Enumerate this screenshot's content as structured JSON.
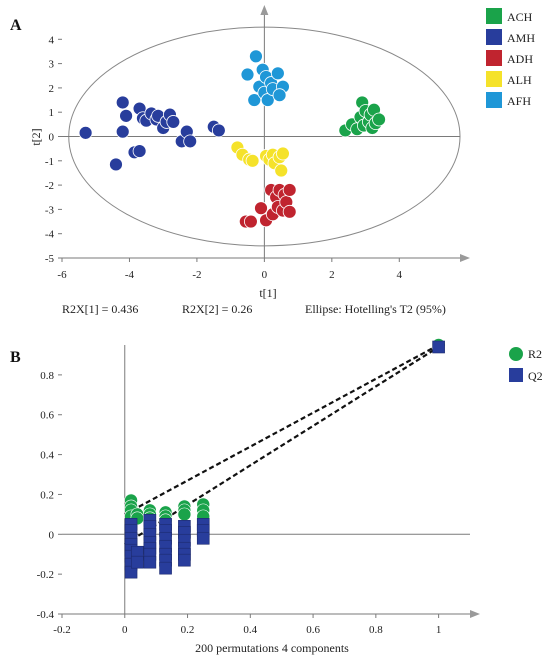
{
  "panels": {
    "a": "A",
    "b": "B"
  },
  "chart_data": [
    {
      "type": "scatter",
      "xlabel": "t[1]",
      "ylabel": "t[2]",
      "xlim": [
        -6,
        5.8
      ],
      "ylim": [
        -5,
        5
      ],
      "xticks": [
        -6,
        -4,
        -2,
        0,
        2,
        4
      ],
      "yticks": [
        -5,
        -4,
        -3,
        -2,
        -1,
        0,
        1,
        2,
        3,
        4
      ],
      "ellipse": {
        "center": [
          0,
          0
        ],
        "rx": 5.8,
        "ry": 4.5
      },
      "legend_position": "right",
      "footer": [
        "R2X[1] = 0.436",
        "R2X[2] = 0.26",
        "Ellipse: Hotelling's T2 (95%)"
      ],
      "series": [
        {
          "name": "ACH",
          "color": "#1aa34a",
          "points": [
            [
              2.4,
              0.25
            ],
            [
              2.6,
              0.5
            ],
            [
              2.75,
              0.3
            ],
            [
              2.85,
              0.8
            ],
            [
              2.9,
              1.4
            ],
            [
              2.95,
              0.45
            ],
            [
              3.0,
              1.05
            ],
            [
              3.1,
              0.6
            ],
            [
              3.15,
              0.9
            ],
            [
              3.2,
              0.35
            ],
            [
              3.25,
              1.1
            ],
            [
              3.3,
              0.55
            ],
            [
              3.4,
              0.7
            ]
          ]
        },
        {
          "name": "AMH",
          "color": "#283d9c",
          "points": [
            [
              -5.3,
              0.15
            ],
            [
              -4.4,
              -1.15
            ],
            [
              -4.2,
              1.4
            ],
            [
              -4.2,
              0.2
            ],
            [
              -4.1,
              0.85
            ],
            [
              -3.85,
              -0.65
            ],
            [
              -3.7,
              -0.6
            ],
            [
              -3.7,
              1.15
            ],
            [
              -3.6,
              0.75
            ],
            [
              -3.5,
              0.65
            ],
            [
              -3.35,
              0.95
            ],
            [
              -3.2,
              0.7
            ],
            [
              -3.15,
              0.85
            ],
            [
              -3.0,
              0.35
            ],
            [
              -2.9,
              0.6
            ],
            [
              -2.8,
              0.9
            ],
            [
              -2.7,
              0.6
            ],
            [
              -2.45,
              -0.2
            ],
            [
              -2.3,
              0.2
            ],
            [
              -2.2,
              -0.2
            ],
            [
              -1.5,
              0.4
            ],
            [
              -1.35,
              0.25
            ]
          ]
        },
        {
          "name": "ADH",
          "color": "#c0242f",
          "points": [
            [
              -0.55,
              -3.5
            ],
            [
              -0.4,
              -3.5
            ],
            [
              -0.1,
              -2.95
            ],
            [
              0.05,
              -3.45
            ],
            [
              0.2,
              -2.2
            ],
            [
              0.25,
              -3.2
            ],
            [
              0.35,
              -2.5
            ],
            [
              0.4,
              -2.9
            ],
            [
              0.45,
              -2.2
            ],
            [
              0.55,
              -3.05
            ],
            [
              0.6,
              -2.4
            ],
            [
              0.65,
              -2.7
            ],
            [
              0.75,
              -2.2
            ],
            [
              0.75,
              -3.1
            ]
          ]
        },
        {
          "name": "ALH",
          "color": "#f5e22a",
          "points": [
            [
              -0.8,
              -0.45
            ],
            [
              -0.65,
              -0.75
            ],
            [
              -0.45,
              -0.95
            ],
            [
              -0.35,
              -1.0
            ],
            [
              0.05,
              -0.8
            ],
            [
              0.15,
              -0.95
            ],
            [
              0.25,
              -0.75
            ],
            [
              0.3,
              -1.1
            ],
            [
              0.45,
              -0.85
            ],
            [
              0.5,
              -1.4
            ],
            [
              0.55,
              -0.7
            ]
          ]
        },
        {
          "name": "AFH",
          "color": "#1f97d7",
          "points": [
            [
              -0.5,
              2.55
            ],
            [
              -0.25,
              3.3
            ],
            [
              -0.3,
              1.5
            ],
            [
              -0.15,
              2.05
            ],
            [
              -0.05,
              2.75
            ],
            [
              0.0,
              1.8
            ],
            [
              0.05,
              2.45
            ],
            [
              0.1,
              1.5
            ],
            [
              0.2,
              2.2
            ],
            [
              0.25,
              1.95
            ],
            [
              0.4,
              2.6
            ],
            [
              0.55,
              2.05
            ],
            [
              0.45,
              1.7
            ]
          ]
        }
      ]
    },
    {
      "type": "scatter",
      "xlabel": "200 permutations 4 components",
      "ylabel": "",
      "xlim": [
        -0.2,
        1.1
      ],
      "ylim": [
        -0.4,
        0.95
      ],
      "xticks": [
        -0.2,
        0,
        0.2,
        0.4,
        0.6,
        0.8,
        1
      ],
      "yticks": [
        -0.4,
        -0.2,
        0,
        0.2,
        0.4,
        0.6,
        0.8
      ],
      "legend_position": "top-right",
      "series": [
        {
          "name": "R2",
          "color": "#1aa34a",
          "marker": "circle",
          "x": [
            0.02,
            0.02,
            0.02,
            0.02,
            0.04,
            0.04,
            0.08,
            0.08,
            0.08,
            0.13,
            0.13,
            0.13,
            0.19,
            0.19,
            0.19,
            0.25,
            0.25,
            0.25,
            1.0
          ],
          "y": [
            0.17,
            0.14,
            0.12,
            0.09,
            0.1,
            0.08,
            0.12,
            0.1,
            0.08,
            0.11,
            0.09,
            0.07,
            0.14,
            0.12,
            0.1,
            0.15,
            0.12,
            0.09,
            0.95
          ]
        },
        {
          "name": "Q2",
          "color": "#283d9c",
          "marker": "square",
          "x": [
            0.02,
            0.02,
            0.02,
            0.02,
            0.02,
            0.02,
            0.02,
            0.02,
            0.04,
            0.04,
            0.08,
            0.08,
            0.08,
            0.08,
            0.08,
            0.08,
            0.08,
            0.13,
            0.13,
            0.13,
            0.13,
            0.13,
            0.13,
            0.13,
            0.19,
            0.19,
            0.19,
            0.19,
            0.19,
            0.19,
            0.25,
            0.25,
            0.25,
            1.0
          ],
          "y": [
            0.05,
            0.02,
            -0.02,
            -0.05,
            -0.08,
            -0.11,
            -0.15,
            -0.19,
            -0.09,
            -0.14,
            0.07,
            0.04,
            0.0,
            -0.04,
            -0.07,
            -0.1,
            -0.14,
            0.05,
            0.02,
            -0.02,
            -0.06,
            -0.1,
            -0.13,
            -0.17,
            0.04,
            0.01,
            -0.03,
            -0.07,
            -0.1,
            -0.13,
            0.05,
            0.02,
            -0.02,
            0.94
          ]
        }
      ],
      "regression_lines": [
        {
          "series": "R2",
          "from": [
            0,
            0.1
          ],
          "to": [
            1.0,
            0.95
          ]
        },
        {
          "series": "Q2",
          "from": [
            0,
            -0.05
          ],
          "to": [
            1.0,
            0.94
          ]
        }
      ]
    }
  ],
  "colors": {
    "axis": "#7a7a7a",
    "ellipse": "#888888",
    "marker_edge": "#ffffff"
  }
}
